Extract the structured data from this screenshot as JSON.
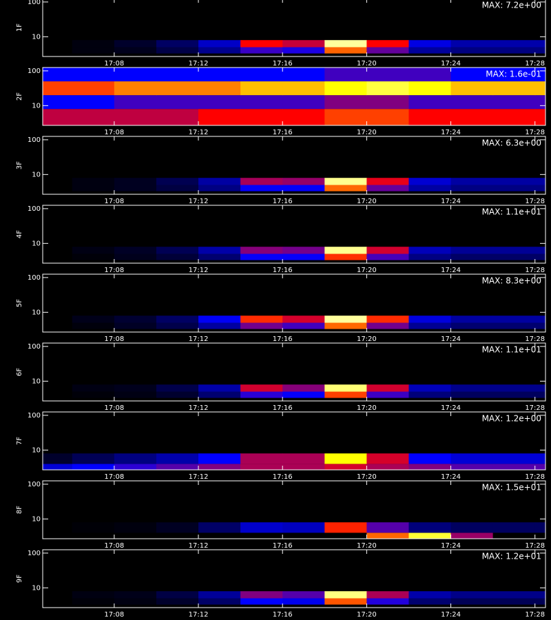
{
  "chart_data": [
    {
      "type": "heatmap",
      "ylabel": "1F",
      "annotation": "MAX: 7.2e+00",
      "zlim": [
        0,
        7.2
      ],
      "colorscale": [
        "#000000",
        "#0000ff",
        "#ff0000",
        "#ffff00",
        "#ffffff"
      ],
      "xlim": [
        1024.6,
        1048.5
      ],
      "xticks": [
        {
          "value": 1028,
          "label": "17:08"
        },
        {
          "value": 1032,
          "label": "17:12"
        },
        {
          "value": 1036,
          "label": "17:16"
        },
        {
          "value": 1040,
          "label": "17:20"
        },
        {
          "value": 1044,
          "label": "17:24"
        },
        {
          "value": 1048,
          "label": "17:28"
        }
      ],
      "ylim": [
        2.7,
        125
      ],
      "yticks": [
        10,
        100
      ],
      "log_y": true,
      "bins": [
        1024.6,
        1026,
        1028,
        1030,
        1032,
        1034,
        1036,
        1038,
        1040,
        1042,
        1044,
        1046,
        1048,
        1048.5
      ],
      "ybins": [
        3.3,
        5,
        8
      ],
      "values": [
        [
          0,
          0.1,
          0.2,
          0.5,
          1.0,
          2.2,
          2.0,
          4.3,
          2.5,
          1.1,
          0.9,
          0.9,
          0.9
        ],
        [
          0,
          0.1,
          0.3,
          0.7,
          1.4,
          3.6,
          3.2,
          6.5,
          3.6,
          1.6,
          1.2,
          1.2,
          1.2
        ]
      ]
    },
    {
      "type": "heatmap",
      "ylabel": "2F",
      "annotation": "MAX: 1.6e-01",
      "zlim": [
        0,
        0.16
      ],
      "colorscale": [
        "#000000",
        "#0000ff",
        "#ff0000",
        "#ffff00",
        "#ffffff"
      ],
      "xlim": [
        1024.6,
        1048.5
      ],
      "xticks": [
        {
          "value": 1028,
          "label": "17:08"
        },
        {
          "value": 1032,
          "label": "17:12"
        },
        {
          "value": 1036,
          "label": "17:16"
        },
        {
          "value": 1040,
          "label": "17:20"
        },
        {
          "value": 1044,
          "label": "17:24"
        },
        {
          "value": 1048,
          "label": "17:28"
        }
      ],
      "ylim": [
        2.7,
        125
      ],
      "yticks": [
        10,
        100
      ],
      "log_y": true,
      "bins": [
        1024.6,
        1026,
        1028,
        1030,
        1032,
        1034,
        1036,
        1038,
        1040,
        1042,
        1044,
        1046,
        1048,
        1048.5
      ],
      "ybins": [
        2.7,
        8,
        20,
        50,
        125
      ],
      "values": [
        [
          0.07,
          0.07,
          0.07,
          0.07,
          0.08,
          0.08,
          0.08,
          0.09,
          0.09,
          0.08,
          0.08,
          0.08,
          0.08
        ],
        [
          0.04,
          0.04,
          0.05,
          0.05,
          0.05,
          0.05,
          0.05,
          0.06,
          0.06,
          0.05,
          0.05,
          0.05,
          0.05
        ],
        [
          0.09,
          0.09,
          0.1,
          0.1,
          0.1,
          0.11,
          0.11,
          0.12,
          0.13,
          0.12,
          0.11,
          0.11,
          0.11
        ],
        [
          0.04,
          0.04,
          0.04,
          0.04,
          0.04,
          0.04,
          0.04,
          0.05,
          0.05,
          0.05,
          0.04,
          0.04,
          0.04
        ]
      ]
    },
    {
      "type": "heatmap",
      "ylabel": "3F",
      "annotation": "MAX: 6.3e+00",
      "zlim": [
        0,
        6.3
      ],
      "colorscale": [
        "#000000",
        "#0000ff",
        "#ff0000",
        "#ffff00",
        "#ffffff"
      ],
      "xlim": [
        1024.6,
        1048.5
      ],
      "xticks": [
        {
          "value": 1028,
          "label": "17:08"
        },
        {
          "value": 1032,
          "label": "17:12"
        },
        {
          "value": 1036,
          "label": "17:16"
        },
        {
          "value": 1040,
          "label": "17:20"
        },
        {
          "value": 1044,
          "label": "17:24"
        },
        {
          "value": 1048,
          "label": "17:28"
        }
      ],
      "ylim": [
        2.7,
        125
      ],
      "yticks": [
        10,
        100
      ],
      "log_y": true,
      "bins": [
        1024.6,
        1026,
        1028,
        1030,
        1032,
        1034,
        1036,
        1038,
        1040,
        1042,
        1044,
        1046,
        1048,
        1048.5
      ],
      "ybins": [
        3.3,
        5,
        8
      ],
      "values": [
        [
          0,
          0.1,
          0.2,
          0.4,
          0.8,
          1.6,
          1.6,
          3.8,
          2.2,
          1.0,
          0.8,
          0.8,
          0.8
        ],
        [
          0,
          0.1,
          0.2,
          0.5,
          1.0,
          2.6,
          2.5,
          5.6,
          3.0,
          1.3,
          1.0,
          1.0,
          1.0
        ]
      ]
    },
    {
      "type": "heatmap",
      "ylabel": "4F",
      "annotation": "MAX: 1.1e+01",
      "zlim": [
        0,
        11
      ],
      "colorscale": [
        "#000000",
        "#0000ff",
        "#ff0000",
        "#ffff00",
        "#ffffff"
      ],
      "xlim": [
        1024.6,
        1048.5
      ],
      "xticks": [
        {
          "value": 1028,
          "label": "17:08"
        },
        {
          "value": 1032,
          "label": "17:12"
        },
        {
          "value": 1036,
          "label": "17:16"
        },
        {
          "value": 1040,
          "label": "17:20"
        },
        {
          "value": 1044,
          "label": "17:24"
        },
        {
          "value": 1048,
          "label": "17:28"
        }
      ],
      "ylim": [
        2.7,
        125
      ],
      "yticks": [
        10,
        100
      ],
      "log_y": true,
      "bins": [
        1024.6,
        1026,
        1028,
        1030,
        1032,
        1034,
        1036,
        1038,
        1040,
        1042,
        1044,
        1046,
        1048,
        1048.5
      ],
      "ybins": [
        3.3,
        5,
        8
      ],
      "values": [
        [
          0,
          0.1,
          0.3,
          0.6,
          1.2,
          2.8,
          2.8,
          6.0,
          3.5,
          1.4,
          1.1,
          1.1,
          1.1
        ],
        [
          0,
          0.2,
          0.4,
          0.9,
          1.8,
          4.2,
          4.0,
          9.8,
          5.0,
          2.0,
          1.6,
          1.6,
          1.6
        ]
      ]
    },
    {
      "type": "heatmap",
      "ylabel": "5F",
      "annotation": "MAX: 8.3e+00",
      "zlim": [
        0,
        8.3
      ],
      "colorscale": [
        "#000000",
        "#0000ff",
        "#ff0000",
        "#ffff00",
        "#ffffff"
      ],
      "xlim": [
        1024.6,
        1048.5
      ],
      "xticks": [
        {
          "value": 1028,
          "label": "17:08"
        },
        {
          "value": 1032,
          "label": "17:12"
        },
        {
          "value": 1036,
          "label": "17:16"
        },
        {
          "value": 1040,
          "label": "17:20"
        },
        {
          "value": 1044,
          "label": "17:24"
        },
        {
          "value": 1048,
          "label": "17:28"
        }
      ],
      "ylim": [
        2.7,
        125
      ],
      "yticks": [
        10,
        100
      ],
      "log_y": true,
      "bins": [
        1024.6,
        1026,
        1028,
        1030,
        1032,
        1034,
        1036,
        1038,
        1040,
        1042,
        1044,
        1046,
        1048,
        1048.5
      ],
      "ybins": [
        3.3,
        5,
        8
      ],
      "values": [
        [
          0,
          0.1,
          0.3,
          0.6,
          1.3,
          3.0,
          2.6,
          5.0,
          3.0,
          1.2,
          0.9,
          0.9,
          0.9
        ],
        [
          0,
          0.2,
          0.4,
          0.8,
          2.0,
          4.5,
          3.8,
          7.5,
          4.5,
          1.8,
          1.3,
          1.3,
          1.3
        ]
      ]
    },
    {
      "type": "heatmap",
      "ylabel": "6F",
      "annotation": "MAX: 1.1e+01",
      "zlim": [
        0,
        11
      ],
      "colorscale": [
        "#000000",
        "#0000ff",
        "#ff0000",
        "#ffff00",
        "#ffffff"
      ],
      "xlim": [
        1024.6,
        1048.5
      ],
      "xticks": [
        {
          "value": 1028,
          "label": "17:08"
        },
        {
          "value": 1032,
          "label": "17:12"
        },
        {
          "value": 1036,
          "label": "17:16"
        },
        {
          "value": 1040,
          "label": "17:20"
        },
        {
          "value": 1044,
          "label": "17:24"
        },
        {
          "value": 1048,
          "label": "17:28"
        }
      ],
      "ylim": [
        2.7,
        125
      ],
      "yticks": [
        10,
        100
      ],
      "log_y": true,
      "bins": [
        1024.6,
        1026,
        1028,
        1030,
        1032,
        1034,
        1036,
        1038,
        1040,
        1042,
        1044,
        1046,
        1048,
        1048.5
      ],
      "ybins": [
        3.3,
        5,
        8
      ],
      "values": [
        [
          0,
          0.1,
          0.2,
          0.5,
          1.2,
          3.2,
          2.8,
          6.2,
          3.4,
          1.3,
          1.0,
          1.0,
          1.0
        ],
        [
          0,
          0.2,
          0.3,
          0.8,
          1.8,
          5.0,
          4.2,
          9.5,
          5.0,
          2.0,
          1.5,
          1.5,
          1.5
        ]
      ]
    },
    {
      "type": "heatmap",
      "ylabel": "7F",
      "annotation": "MAX: 1.2e+00",
      "zlim": [
        0,
        1.2
      ],
      "colorscale": [
        "#000000",
        "#0000ff",
        "#ff0000",
        "#ffff00",
        "#ffffff"
      ],
      "xlim": [
        1024.6,
        1048.5
      ],
      "xticks": [
        {
          "value": 1028,
          "label": "17:08"
        },
        {
          "value": 1032,
          "label": "17:12"
        },
        {
          "value": 1036,
          "label": "17:16"
        },
        {
          "value": 1040,
          "label": "17:20"
        },
        {
          "value": 1044,
          "label": "17:24"
        },
        {
          "value": 1048,
          "label": "17:28"
        }
      ],
      "ylim": [
        2.7,
        125
      ],
      "yticks": [
        10,
        100
      ],
      "log_y": true,
      "bins": [
        1024.6,
        1026,
        1028,
        1030,
        1032,
        1034,
        1036,
        1038,
        1040,
        1042,
        1044,
        1046,
        1048,
        1048.5
      ],
      "ybins": [
        2.7,
        4,
        8
      ],
      "values": [
        [
          0.25,
          0.3,
          0.35,
          0.4,
          0.45,
          0.5,
          0.5,
          0.55,
          0.5,
          0.45,
          0.4,
          0.4,
          0.4
        ],
        [
          0.05,
          0.1,
          0.15,
          0.2,
          0.3,
          0.5,
          0.5,
          0.9,
          0.55,
          0.3,
          0.25,
          0.25,
          0.25
        ]
      ]
    },
    {
      "type": "heatmap",
      "ylabel": "8F",
      "annotation": "MAX: 1.5e+01",
      "zlim": [
        0,
        15
      ],
      "colorscale": [
        "#000000",
        "#0000ff",
        "#ff0000",
        "#ffff00",
        "#ffffff"
      ],
      "xlim": [
        1024.6,
        1048.5
      ],
      "xticks": [
        {
          "value": 1028,
          "label": "17:08"
        },
        {
          "value": 1032,
          "label": "17:12"
        },
        {
          "value": 1036,
          "label": "17:16"
        },
        {
          "value": 1040,
          "label": "17:20"
        },
        {
          "value": 1044,
          "label": "17:24"
        },
        {
          "value": 1048,
          "label": "17:28"
        }
      ],
      "ylim": [
        2.7,
        125
      ],
      "yticks": [
        10,
        100
      ],
      "log_y": true,
      "bins": [
        1024.6,
        1026,
        1028,
        1030,
        1032,
        1034,
        1036,
        1038,
        1040,
        1042,
        1044,
        1046,
        1048,
        1048.5
      ],
      "ybins": [
        2.7,
        4,
        8
      ],
      "values": [
        [
          0,
          0,
          0,
          0,
          0,
          0,
          0,
          0,
          9,
          12,
          6,
          0,
          0
        ],
        [
          0,
          0.1,
          0.2,
          0.5,
          1.5,
          3.0,
          2.8,
          8.0,
          5.0,
          1.8,
          1.4,
          1.4,
          1.4
        ]
      ]
    },
    {
      "type": "heatmap",
      "ylabel": "9F",
      "annotation": "MAX: 1.2e+01",
      "zlim": [
        0,
        12
      ],
      "colorscale": [
        "#000000",
        "#0000ff",
        "#ff0000",
        "#ffff00",
        "#ffffff"
      ],
      "xlim": [
        1024.6,
        1048.5
      ],
      "xticks": [
        {
          "value": 1028,
          "label": "17:08"
        },
        {
          "value": 1032,
          "label": "17:12"
        },
        {
          "value": 1036,
          "label": "17:16"
        },
        {
          "value": 1040,
          "label": "17:20"
        },
        {
          "value": 1044,
          "label": "17:24"
        },
        {
          "value": 1048,
          "label": "17:28"
        }
      ],
      "ylim": [
        2.7,
        125
      ],
      "yticks": [
        10,
        100
      ],
      "log_y": true,
      "bins": [
        1024.6,
        1026,
        1028,
        1030,
        1032,
        1034,
        1036,
        1038,
        1040,
        1042,
        1044,
        1046,
        1048,
        1048.5
      ],
      "ybins": [
        3.3,
        5,
        8
      ],
      "values": [
        [
          0,
          0.1,
          0.2,
          0.5,
          1.2,
          3.0,
          2.8,
          7.0,
          3.4,
          1.3,
          1.0,
          1.0,
          1.0
        ],
        [
          0,
          0.2,
          0.3,
          0.8,
          1.8,
          4.5,
          4.0,
          10.5,
          5.0,
          2.0,
          1.6,
          1.6,
          1.6
        ]
      ]
    }
  ]
}
